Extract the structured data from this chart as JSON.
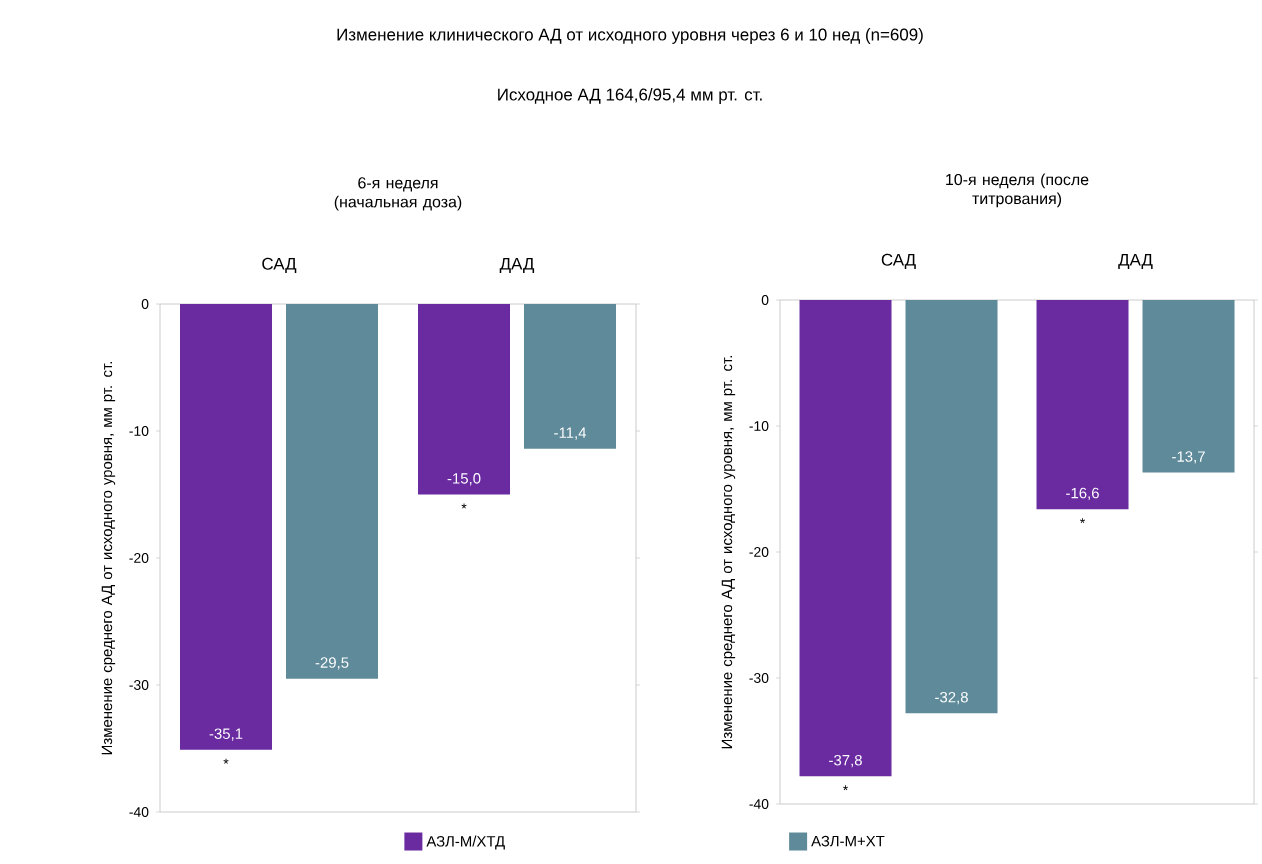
{
  "chart_data": [
    {
      "type": "bar",
      "title": "Изменение клинического АД от исходного уровня через 6 и 10 нед (n=609)",
      "subtitle": "Исходное АД 164,6/95,4 мм рт. ст.",
      "ylabel": "Изменение среднего АД от исходного уровня, мм рт. ст.",
      "categories": [
        "САД",
        "ДАД"
      ],
      "series": [
        {
          "name": "АЗЛ-М/ХТД",
          "color": "#6a2aa0",
          "values": [
            -35.1,
            -15.0
          ],
          "value_labels": [
            "-35,1",
            "-15,0"
          ]
        },
        {
          "name": "АЗЛ-М+ХТ",
          "color": "#5f8a9a",
          "values": [
            -29.5,
            -11.4
          ],
          "value_labels": [
            "-29,5",
            "-11,4"
          ]
        }
      ],
      "ylim": [
        -40,
        0
      ],
      "yticks": [
        0,
        -10,
        -20,
        -30,
        -40
      ],
      "legend": "bottom",
      "annotations": [
        "6-я неделя (начальная доза)",
        "*",
        "*"
      ]
    },
    {
      "type": "bar",
      "ylabel": "Изменение среднего АД от исходного уровня, мм рт. ст.",
      "categories": [
        "САД",
        "ДАД"
      ],
      "series": [
        {
          "color": "#6a2aa0",
          "values": [
            -37.8,
            -16.6
          ],
          "value_labels": [
            "-37,8",
            "-16,6"
          ]
        },
        {
          "color": "#5f8a9a",
          "values": [
            -32.8,
            -13.7
          ],
          "value_labels": [
            "-32,8",
            "-13,7"
          ]
        }
      ],
      "ylim": [
        -40,
        0
      ],
      "yticks": [
        0,
        -10,
        -20,
        -30,
        -40
      ],
      "annotations": [
        "10-я неделя (после титрования)",
        "*",
        "*"
      ]
    }
  ]
}
